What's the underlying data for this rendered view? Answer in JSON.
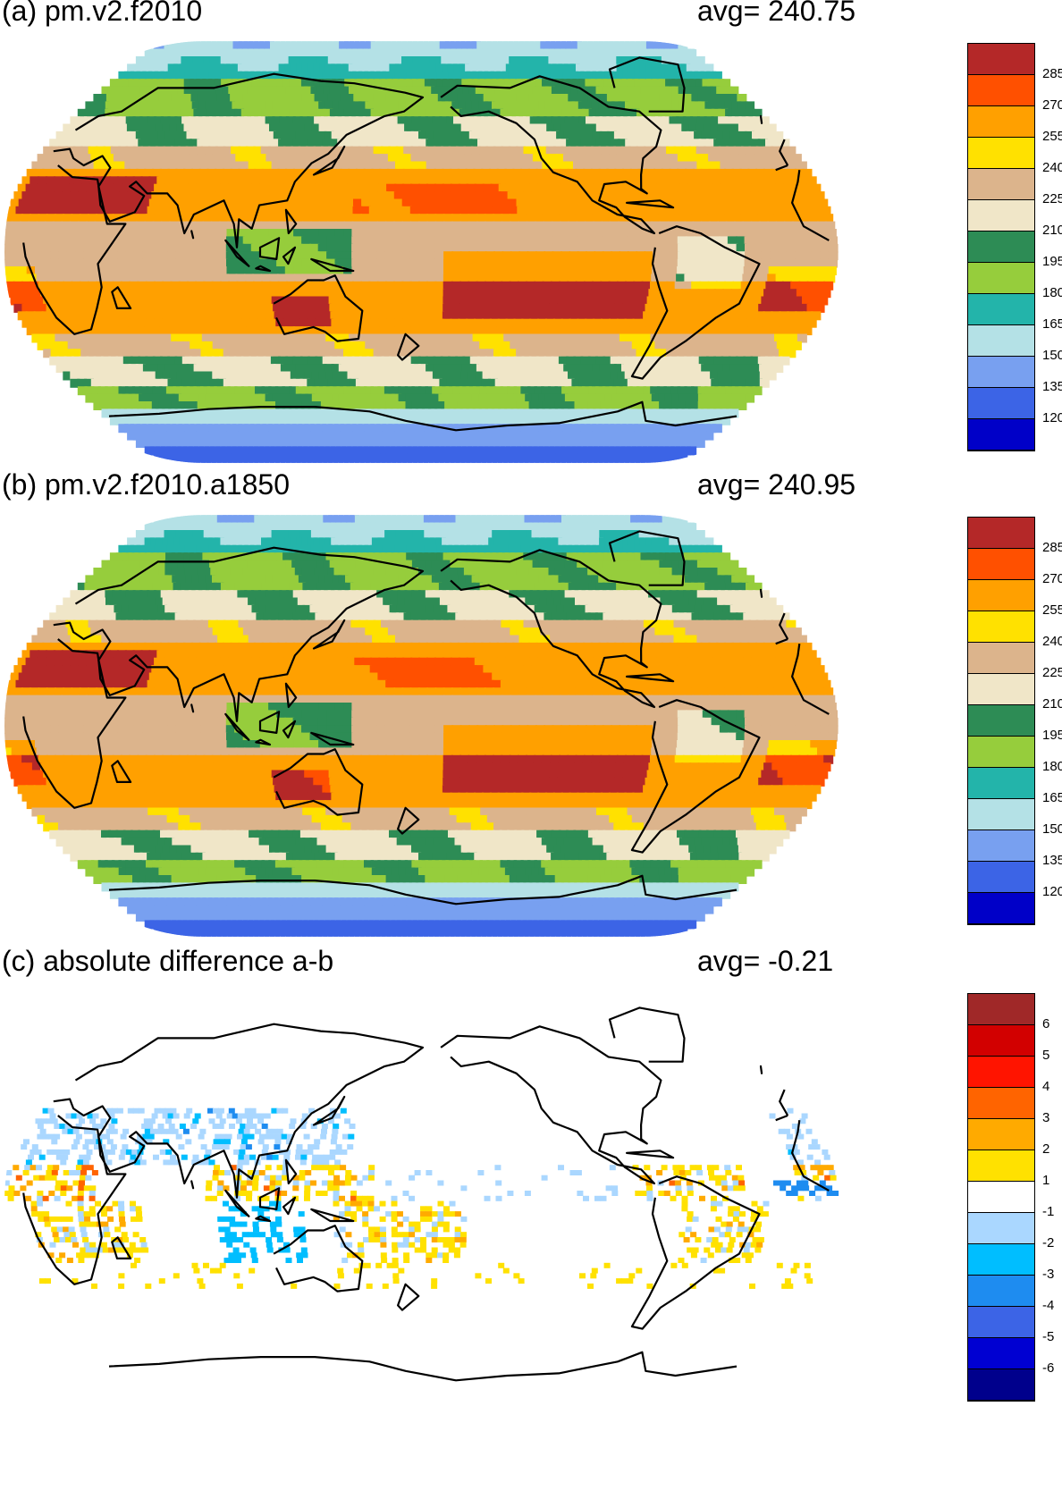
{
  "panels": [
    {
      "id": "a",
      "title": "(a) pm.v2.f2010",
      "avg_label": "avg=",
      "avg_value": "240.75",
      "colorbar": {
        "colors": [
          "#0000c8",
          "#3c64e6",
          "#78a0f0",
          "#b4e1e6",
          "#23b4aa",
          "#96cd3c",
          "#2d8c55",
          "#f0e6c8",
          "#dcb48c",
          "#ffe100",
          "#ffa000",
          "#ff5000",
          "#b42828"
        ],
        "labels": [
          "120",
          "135",
          "150",
          "165",
          "180",
          "195",
          "210",
          "225",
          "240",
          "255",
          "270",
          "285"
        ]
      }
    },
    {
      "id": "b",
      "title": "(b) pm.v2.f2010.a1850",
      "avg_label": "avg=",
      "avg_value": "240.95",
      "colorbar": {
        "colors": [
          "#0000c8",
          "#3c64e6",
          "#78a0f0",
          "#b4e1e6",
          "#23b4aa",
          "#96cd3c",
          "#2d8c55",
          "#f0e6c8",
          "#dcb48c",
          "#ffe100",
          "#ffa000",
          "#ff5000",
          "#b42828"
        ],
        "labels": [
          "120",
          "135",
          "150",
          "165",
          "180",
          "195",
          "210",
          "225",
          "240",
          "255",
          "270",
          "285"
        ]
      }
    },
    {
      "id": "c",
      "title": "(c) absolute difference a-b",
      "avg_label": "avg=",
      "avg_value": "-0.21",
      "colorbar": {
        "colors": [
          "#00008c",
          "#0000d2",
          "#3c64e6",
          "#1e8cf0",
          "#00beff",
          "#aad7ff",
          "#ffffff",
          "#ffe100",
          "#ffaa00",
          "#ff6400",
          "#ff1400",
          "#d20000",
          "#a02828"
        ],
        "labels": [
          "-6",
          "-5",
          "-4",
          "-3",
          "-2",
          "-1",
          "1",
          "2",
          "3",
          "4",
          "5",
          "6"
        ]
      }
    }
  ]
}
